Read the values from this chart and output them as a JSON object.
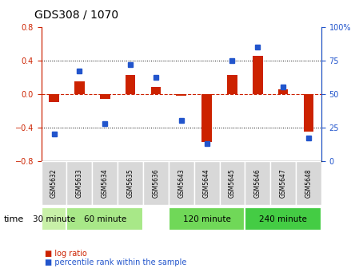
{
  "title": "GDS308 / 1070",
  "samples": [
    "GSM5632",
    "GSM5633",
    "GSM5634",
    "GSM5635",
    "GSM5636",
    "GSM5643",
    "GSM5644",
    "GSM5645",
    "GSM5646",
    "GSM5647",
    "GSM5648"
  ],
  "log_ratio": [
    -0.1,
    0.15,
    -0.06,
    0.22,
    0.08,
    -0.02,
    -0.58,
    0.22,
    0.45,
    0.05,
    -0.45
  ],
  "percentile": [
    20,
    67,
    28,
    72,
    62,
    30,
    13,
    75,
    85,
    55,
    17
  ],
  "bar_color": "#cc2200",
  "dot_color": "#2255cc",
  "ylim_left": [
    -0.8,
    0.8
  ],
  "ylim_right": [
    0,
    100
  ],
  "yticks_left": [
    -0.8,
    -0.4,
    0.0,
    0.4,
    0.8
  ],
  "yticks_right": [
    0,
    25,
    50,
    75,
    100
  ],
  "time_groups": [
    {
      "label": "30 minute",
      "indices": [
        0
      ],
      "color": "#c8f0a8"
    },
    {
      "label": "60 minute",
      "indices": [
        1,
        2,
        3
      ],
      "color": "#a8e888"
    },
    {
      "label": "120 minute",
      "indices": [
        5,
        6,
        7
      ],
      "color": "#70d858"
    },
    {
      "label": "240 minute",
      "indices": [
        8,
        9,
        10
      ],
      "color": "#44cc44"
    }
  ],
  "xlabel_time": "time",
  "legend_log": "log ratio",
  "legend_pct": "percentile rank within the sample",
  "bg_color": "#ffffff",
  "plot_bg": "#ffffff",
  "grid_color": "#000000",
  "zero_line_color": "#cc2200",
  "tick_label_color_left": "#cc2200",
  "tick_label_color_right": "#2255cc",
  "sample_box_color": "#d8d8d8",
  "bar_width": 0.4
}
